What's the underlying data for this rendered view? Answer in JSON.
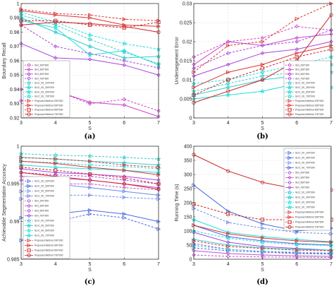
{
  "chart_data": [
    {
      "type": "line",
      "panel_label": "(a)",
      "xlabel": "S",
      "ylabel": "Boundary Recall",
      "x": [
        3,
        4,
        5,
        6,
        7
      ],
      "ylim": [
        0.92,
        1.0
      ],
      "yticks": [
        "0.92",
        "0.93",
        "0.94",
        "0.95",
        "0.96",
        "0.97",
        "0.98",
        "0.99",
        "1"
      ],
      "grid": true,
      "legend_position": "bottom-left",
      "series": [
        {
          "name": "SDI_200*300",
          "color": "#cc44cc",
          "dash": true,
          "marker": "diamond",
          "values": [
            0.94,
            0.939,
            0.93,
            0.933,
            0.925
          ]
        },
        {
          "name": "SDI_300*300",
          "color": "#cc44cc",
          "dash": false,
          "marker": "diamond",
          "values": [
            0.932,
            0.939,
            0.931,
            0.929,
            0.921
          ]
        },
        {
          "name": "SDI_500*300",
          "color": "#aa44dd",
          "dash": false,
          "marker": "diamond",
          "values": [
            0.972,
            0.962,
            0.961,
            0.957,
            0.95
          ]
        },
        {
          "name": "SDI_700*300",
          "color": "#aa44dd",
          "dash": true,
          "marker": "diamond",
          "values": [
            0.985,
            0.97,
            0.965,
            0.96,
            0.955
          ]
        },
        {
          "name": "SLIC_00_200*300",
          "color": "#33cccc",
          "dash": true,
          "marker": "star",
          "values": [
            0.992,
            0.985,
            0.975,
            0.966,
            0.958
          ]
        },
        {
          "name": "SLIC_00_300*300",
          "color": "#33cccc",
          "dash": false,
          "marker": "star",
          "values": [
            0.99,
            0.98,
            0.97,
            0.962,
            0.963
          ]
        },
        {
          "name": "SLIC_00_500*300",
          "color": "#22dddd",
          "dash": false,
          "marker": "star",
          "values": [
            0.988,
            0.983,
            0.964,
            0.967,
            0.957
          ]
        },
        {
          "name": "SLIC_00_700*300",
          "color": "#22dddd",
          "dash": true,
          "marker": "star",
          "values": [
            0.994,
            0.987,
            0.978,
            0.972,
            0.968
          ]
        },
        {
          "name": "Proposed Method 200*300",
          "color": "#dd3333",
          "dash": true,
          "marker": "triangle",
          "values": [
            0.996,
            0.993,
            0.992,
            0.989,
            0.988
          ]
        },
        {
          "name": "Proposed Method 300*300",
          "color": "#dd3333",
          "dash": false,
          "marker": "triangle",
          "values": [
            0.995,
            0.992,
            0.99,
            0.985,
            0.984
          ]
        },
        {
          "name": "Proposed Method 500*300",
          "color": "#cc2222",
          "dash": true,
          "marker": "square",
          "values": [
            0.988,
            0.988,
            0.985,
            0.983,
            0.987
          ]
        },
        {
          "name": "Proposed Method 700*300",
          "color": "#cc2222",
          "dash": false,
          "marker": "circle",
          "values": [
            0.985,
            0.987,
            0.986,
            0.984,
            0.98
          ]
        }
      ]
    },
    {
      "type": "line",
      "panel_label": "(b)",
      "xlabel": "S",
      "ylabel": "Undersegement Error",
      "x": [
        3,
        4,
        5,
        6,
        7
      ],
      "ylim": [
        0,
        0.03
      ],
      "yticks": [
        "0",
        "0.005",
        "0.01",
        "0.015",
        "0.02",
        "0.025",
        "0.03"
      ],
      "grid": true,
      "legend_position": "bottom-right",
      "series": [
        {
          "name": "SDI_200*300",
          "color": "#cc44cc",
          "dash": true,
          "marker": "diamond",
          "values": [
            0.016,
            0.02,
            0.021,
            0.024,
            0.023
          ]
        },
        {
          "name": "SDI_300*300",
          "color": "#cc44cc",
          "dash": false,
          "marker": "diamond",
          "values": [
            0.014,
            0.02,
            0.019,
            0.021,
            0.022
          ]
        },
        {
          "name": "SDI_500*300",
          "color": "#aa44dd",
          "dash": false,
          "marker": "diamond",
          "values": [
            0.011,
            0.014,
            0.017,
            0.018,
            0.02
          ]
        },
        {
          "name": "SDI_700*300",
          "color": "#aa44dd",
          "dash": true,
          "marker": "diamond",
          "values": [
            0.013,
            0.017,
            0.019,
            0.02,
            0.023
          ]
        },
        {
          "name": "SLIC_00_200*300",
          "color": "#33cccc",
          "dash": true,
          "marker": "star",
          "values": [
            0.007,
            0.009,
            0.011,
            0.012,
            0.014
          ]
        },
        {
          "name": "SLIC_00_300*300",
          "color": "#33cccc",
          "dash": false,
          "marker": "star",
          "values": [
            0.006,
            0.008,
            0.01,
            0.011,
            0.012
          ]
        },
        {
          "name": "SLIC_00_500*300",
          "color": "#22dddd",
          "dash": false,
          "marker": "star",
          "values": [
            0.005,
            0.006,
            0.007,
            0.009,
            0.008
          ]
        },
        {
          "name": "SLIC_00_700*300",
          "color": "#22dddd",
          "dash": true,
          "marker": "star",
          "values": [
            0.009,
            0.01,
            0.012,
            0.014,
            0.016
          ]
        },
        {
          "name": "Proposed Method 200*300",
          "color": "#dd3333",
          "dash": true,
          "marker": "triangle",
          "values": [
            0.012,
            0.019,
            0.02,
            0.026,
            0.03
          ]
        },
        {
          "name": "Proposed Method 300*300",
          "color": "#dd3333",
          "dash": false,
          "marker": "triangle",
          "values": [
            0.008,
            0.012,
            0.014,
            0.017,
            0.019
          ]
        },
        {
          "name": "Proposed Method 500*300",
          "color": "#cc2222",
          "dash": true,
          "marker": "square",
          "values": [
            0.006,
            0.01,
            0.013,
            0.016,
            0.018
          ]
        },
        {
          "name": "Proposed Method 700*300",
          "color": "#cc2222",
          "dash": false,
          "marker": "circle",
          "values": [
            0.004,
            0.007,
            0.01,
            0.015,
            0.027
          ]
        }
      ]
    },
    {
      "type": "line",
      "panel_label": "(c)",
      "xlabel": "S",
      "ylabel": "Achievable Segmentation Accuracy",
      "x": [
        3,
        4,
        5,
        6,
        7
      ],
      "ylim": [
        0.985,
        1.0
      ],
      "yticks": [
        "0.985",
        "0.99",
        "0.995",
        "1"
      ],
      "grid": true,
      "legend_position": "bottom-left",
      "series": [
        {
          "name": "SLIC_00_200*300",
          "color": "#4a6bdc",
          "dash": true,
          "marker": "triangle",
          "values": [
            0.9875,
            0.99,
            0.991,
            0.9905,
            0.989
          ]
        },
        {
          "name": "SLIC_00_300*300",
          "color": "#4a6bdc",
          "dash": false,
          "marker": "triangle",
          "values": [
            0.9905,
            0.991,
            0.9915,
            0.991,
            0.99
          ]
        },
        {
          "name": "SLIC_00_500*300",
          "color": "#6a8be8",
          "dash": true,
          "marker": "triangle",
          "values": [
            0.993,
            0.9935,
            0.9935,
            0.9932,
            0.993
          ]
        },
        {
          "name": "SLIC_00_700*300",
          "color": "#6a8be8",
          "dash": false,
          "marker": "triangle",
          "values": [
            0.994,
            0.995,
            0.9945,
            0.994,
            0.9935
          ]
        },
        {
          "name": "SDI_200*300",
          "color": "#bb55cc",
          "dash": true,
          "marker": "diamond",
          "values": [
            0.9955,
            0.995,
            0.995,
            0.9945,
            0.9942
          ]
        },
        {
          "name": "SDI_300*300",
          "color": "#bb55cc",
          "dash": false,
          "marker": "diamond",
          "values": [
            0.996,
            0.9958,
            0.9955,
            0.995,
            0.9945
          ]
        },
        {
          "name": "SDI_500*300",
          "color": "#aa44dd",
          "dash": true,
          "marker": "diamond",
          "values": [
            0.9965,
            0.9962,
            0.996,
            0.9955,
            0.995
          ]
        },
        {
          "name": "SDI_700*300",
          "color": "#aa44dd",
          "dash": false,
          "marker": "diamond",
          "values": [
            0.997,
            0.9965,
            0.9963,
            0.996,
            0.9955
          ]
        },
        {
          "name": "SLIC_00_200*300",
          "color": "#33cccc",
          "dash": true,
          "marker": "star",
          "values": [
            0.999,
            0.9988,
            0.9987,
            0.9985,
            0.9983
          ]
        },
        {
          "name": "SLIC_00_300*300",
          "color": "#33cccc",
          "dash": false,
          "marker": "star",
          "values": [
            0.9985,
            0.9983,
            0.998,
            0.9978,
            0.9975
          ]
        },
        {
          "name": "SLIC_00_500*300",
          "color": "#22dddd",
          "dash": true,
          "marker": "star",
          "values": [
            0.998,
            0.9978,
            0.9975,
            0.9973,
            0.997
          ]
        },
        {
          "name": "SLIC_00_700*300",
          "color": "#22dddd",
          "dash": false,
          "marker": "star",
          "values": [
            0.9975,
            0.9972,
            0.997,
            0.9968,
            0.9965
          ]
        },
        {
          "name": "Proposed Method 200*300",
          "color": "#dd3333",
          "dash": true,
          "marker": "triangle",
          "values": [
            0.9985,
            0.9983,
            0.998,
            0.9975,
            0.9972
          ]
        },
        {
          "name": "Proposed Method 300*300",
          "color": "#dd3333",
          "dash": false,
          "marker": "triangle",
          "values": [
            0.998,
            0.9977,
            0.9972,
            0.9968,
            0.9962
          ]
        },
        {
          "name": "Proposed Method 500*300",
          "color": "#cc2222",
          "dash": true,
          "marker": "square",
          "values": [
            0.9972,
            0.9968,
            0.9963,
            0.9958,
            0.995
          ]
        },
        {
          "name": "Proposed Method 700*300",
          "color": "#cc2222",
          "dash": false,
          "marker": "circle",
          "values": [
            0.9965,
            0.996,
            0.9955,
            0.995,
            0.9943
          ]
        }
      ]
    },
    {
      "type": "line",
      "panel_label": "(d)",
      "xlabel": "S",
      "ylabel": "Running Time (s)",
      "x": [
        3,
        4,
        5,
        6,
        7
      ],
      "ylim": [
        0,
        400
      ],
      "yticks": [
        "0",
        "50",
        "100",
        "150",
        "200",
        "250",
        "300",
        "350",
        "400"
      ],
      "grid": true,
      "legend_position": "top-right",
      "series": [
        {
          "name": "SLIC_00_200*300",
          "color": "#4a6bdc",
          "dash": true,
          "marker": "triangle",
          "values": [
            40,
            30,
            25,
            20,
            18
          ]
        },
        {
          "name": "SLIC_00_300*300",
          "color": "#4a6bdc",
          "dash": false,
          "marker": "triangle",
          "values": [
            120,
            80,
            65,
            55,
            50
          ]
        },
        {
          "name": "SLIC_00_500*300",
          "color": "#6a8be8",
          "dash": true,
          "marker": "triangle",
          "values": [
            180,
            130,
            110,
            95,
            90
          ]
        },
        {
          "name": "SLIC_00_700*300",
          "color": "#4a6bdc",
          "dash": false,
          "marker": "triangle",
          "values": [
            262,
            170,
            125,
            100,
            110
          ]
        },
        {
          "name": "SDI_200*300",
          "color": "#bb55cc",
          "dash": true,
          "marker": "diamond",
          "values": [
            15,
            10,
            8,
            7,
            6
          ]
        },
        {
          "name": "SDI_300*300",
          "color": "#bb55cc",
          "dash": false,
          "marker": "diamond",
          "values": [
            30,
            20,
            15,
            12,
            10
          ]
        },
        {
          "name": "SDI_500*300",
          "color": "#aa44dd",
          "dash": true,
          "marker": "diamond",
          "values": [
            55,
            35,
            28,
            22,
            20
          ]
        },
        {
          "name": "SDI_700*300",
          "color": "#aa44dd",
          "dash": false,
          "marker": "diamond",
          "values": [
            95,
            60,
            45,
            38,
            32
          ]
        },
        {
          "name": "SLIC_00_200*300",
          "color": "#33cccc",
          "dash": true,
          "marker": "star",
          "values": [
            48,
            35,
            28,
            25,
            22
          ]
        },
        {
          "name": "SLIC_00_300*300",
          "color": "#33cccc",
          "dash": false,
          "marker": "star",
          "values": [
            70,
            50,
            40,
            35,
            32
          ]
        },
        {
          "name": "SLIC_00_500*300",
          "color": "#22dddd",
          "dash": true,
          "marker": "star",
          "values": [
            100,
            75,
            60,
            52,
            48
          ]
        },
        {
          "name": "SLIC_00_700*300",
          "color": "#22dddd",
          "dash": false,
          "marker": "star",
          "values": [
            140,
            95,
            80,
            70,
            62
          ]
        },
        {
          "name": "Proposed Method 200*300",
          "color": "#dd3333",
          "dash": true,
          "marker": "triangle",
          "values": [
            65,
            45,
            38,
            32,
            30
          ]
        },
        {
          "name": "Proposed Method 300*300",
          "color": "#dd3333",
          "dash": false,
          "marker": "triangle",
          "values": [
            120,
            90,
            75,
            65,
            60
          ]
        },
        {
          "name": "Proposed Method 500*300",
          "color": "#cc2222",
          "dash": true,
          "marker": "square",
          "values": [
            195,
            160,
            140,
            140,
            140
          ]
        },
        {
          "name": "Proposed Method 700*300",
          "color": "#cc2222",
          "dash": false,
          "marker": "circle",
          "values": [
            370,
            312,
            272,
            248,
            245
          ]
        }
      ]
    }
  ]
}
